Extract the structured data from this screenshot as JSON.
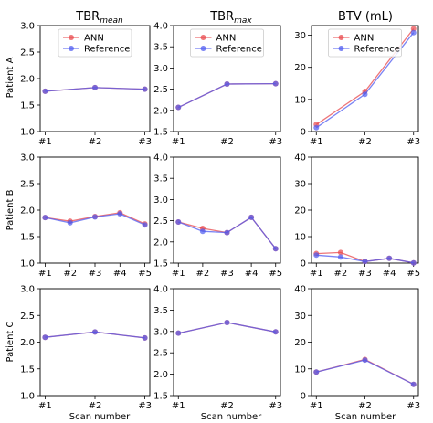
{
  "colors": {
    "ann": "#e8474b",
    "reference": "#4f5bf0",
    "overlap": "#8a3fc0"
  },
  "legend": {
    "ann": "ANN",
    "reference": "Reference",
    "placement": "upper-left"
  },
  "col_titles": [
    {
      "main": "TBR",
      "sub": "mean"
    },
    {
      "main": "TBR",
      "sub": "max"
    },
    {
      "main": "BTV (mL)",
      "sub": ""
    }
  ],
  "row_labels": [
    "Patient A",
    "Patient B",
    "Patient C"
  ],
  "xlabel": "Scan number",
  "chart_data": [
    {
      "type": "line",
      "row": 0,
      "col": 0,
      "categories": [
        "#1",
        "#2",
        "#3"
      ],
      "ylim": [
        1.0,
        3.0
      ],
      "yticks": [
        "1.0",
        "1.5",
        "2.0",
        "2.5",
        "3.0"
      ],
      "legend": true,
      "series": [
        {
          "name": "ANN",
          "values": [
            1.76,
            1.83,
            1.8
          ]
        },
        {
          "name": "Reference",
          "values": [
            1.76,
            1.83,
            1.8
          ]
        }
      ]
    },
    {
      "type": "line",
      "row": 0,
      "col": 1,
      "categories": [
        "#1",
        "#2",
        "#3"
      ],
      "ylim": [
        1.5,
        4.0
      ],
      "yticks": [
        "1.5",
        "2.0",
        "2.5",
        "3.0",
        "3.5",
        "4.0"
      ],
      "legend": true,
      "series": [
        {
          "name": "ANN",
          "values": [
            2.07,
            2.62,
            2.63
          ]
        },
        {
          "name": "Reference",
          "values": [
            2.07,
            2.62,
            2.63
          ]
        }
      ]
    },
    {
      "type": "line",
      "row": 0,
      "col": 2,
      "categories": [
        "#1",
        "#2",
        "#3"
      ],
      "ylim": [
        0,
        33
      ],
      "yticks": [
        "0",
        "10",
        "20",
        "30"
      ],
      "legend": true,
      "series": [
        {
          "name": "ANN",
          "values": [
            2.2,
            12.5,
            32.0
          ]
        },
        {
          "name": "Reference",
          "values": [
            1.2,
            11.6,
            30.8
          ]
        }
      ]
    },
    {
      "type": "line",
      "row": 1,
      "col": 0,
      "categories": [
        "#1",
        "#2",
        "#3",
        "#4",
        "#5"
      ],
      "ylim": [
        1.0,
        3.0
      ],
      "yticks": [
        "1.0",
        "1.5",
        "2.0",
        "2.5",
        "3.0"
      ],
      "legend": false,
      "series": [
        {
          "name": "ANN",
          "values": [
            1.86,
            1.79,
            1.88,
            1.95,
            1.74
          ]
        },
        {
          "name": "Reference",
          "values": [
            1.86,
            1.76,
            1.87,
            1.93,
            1.72
          ]
        }
      ]
    },
    {
      "type": "line",
      "row": 1,
      "col": 1,
      "categories": [
        "#1",
        "#2",
        "#3",
        "#4",
        "#5"
      ],
      "ylim": [
        1.5,
        4.0
      ],
      "yticks": [
        "1.5",
        "2.0",
        "2.5",
        "3.0",
        "3.5",
        "4.0"
      ],
      "legend": false,
      "series": [
        {
          "name": "ANN",
          "values": [
            2.47,
            2.32,
            2.22,
            2.58,
            1.84
          ]
        },
        {
          "name": "Reference",
          "values": [
            2.47,
            2.25,
            2.22,
            2.58,
            1.84
          ]
        }
      ]
    },
    {
      "type": "line",
      "row": 1,
      "col": 2,
      "categories": [
        "#1",
        "#2",
        "#3",
        "#4",
        "#5"
      ],
      "ylim": [
        0,
        40
      ],
      "yticks": [
        "0",
        "10",
        "20",
        "30",
        "40"
      ],
      "legend": false,
      "series": [
        {
          "name": "ANN",
          "values": [
            3.6,
            4.0,
            0.6,
            1.8,
            0.1
          ]
        },
        {
          "name": "Reference",
          "values": [
            3.0,
            2.3,
            0.6,
            1.8,
            0.1
          ]
        }
      ]
    },
    {
      "type": "line",
      "row": 2,
      "col": 0,
      "categories": [
        "#1",
        "#2",
        "#3"
      ],
      "ylim": [
        1.0,
        3.0
      ],
      "yticks": [
        "1.0",
        "1.5",
        "2.0",
        "2.5",
        "3.0"
      ],
      "legend": false,
      "series": [
        {
          "name": "ANN",
          "values": [
            2.09,
            2.19,
            2.08
          ]
        },
        {
          "name": "Reference",
          "values": [
            2.09,
            2.19,
            2.08
          ]
        }
      ]
    },
    {
      "type": "line",
      "row": 2,
      "col": 1,
      "categories": [
        "#1",
        "#2",
        "#3"
      ],
      "ylim": [
        1.5,
        4.0
      ],
      "yticks": [
        "1.5",
        "2.0",
        "2.5",
        "3.0",
        "3.5",
        "4.0"
      ],
      "legend": false,
      "series": [
        {
          "name": "ANN",
          "values": [
            2.96,
            3.21,
            2.99
          ]
        },
        {
          "name": "Reference",
          "values": [
            2.96,
            3.21,
            2.99
          ]
        }
      ]
    },
    {
      "type": "line",
      "row": 2,
      "col": 2,
      "categories": [
        "#1",
        "#2",
        "#3"
      ],
      "ylim": [
        0,
        40
      ],
      "yticks": [
        "0",
        "10",
        "20",
        "30",
        "40"
      ],
      "legend": false,
      "series": [
        {
          "name": "ANN",
          "values": [
            8.8,
            13.5,
            4.2
          ]
        },
        {
          "name": "Reference",
          "values": [
            8.8,
            13.3,
            4.2
          ]
        }
      ]
    }
  ]
}
